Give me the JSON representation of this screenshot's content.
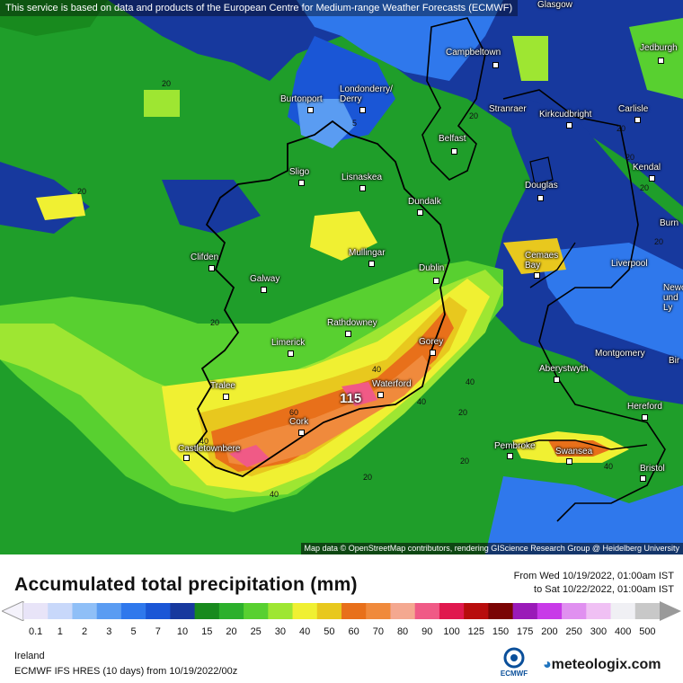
{
  "map": {
    "attribution_top": "This service is based on data and products of the European Centre for Medium-range Weather Forecasts (ECMWF)",
    "attribution_bottom": "Map data © OpenStreetMap contributors, rendering GIScience Research Group @ Heidelberg University",
    "max_value": "115",
    "cities": [
      {
        "name": "Glasgow"
      },
      {
        "name": "Campbeltown"
      },
      {
        "name": "Jedburgh"
      },
      {
        "name": "Londonderry/\nDerry"
      },
      {
        "name": "Burtonport"
      },
      {
        "name": "Stranraer"
      },
      {
        "name": "Kirkcudbright"
      },
      {
        "name": "Carlisle"
      },
      {
        "name": "Belfast"
      },
      {
        "name": "Sligo"
      },
      {
        "name": "Lisnaskea"
      },
      {
        "name": "Kendal"
      },
      {
        "name": "Douglas"
      },
      {
        "name": "Dundalk"
      },
      {
        "name": "Mullingar"
      },
      {
        "name": "Clifden"
      },
      {
        "name": "Cemaes\nBay"
      },
      {
        "name": "Dublin"
      },
      {
        "name": "Liverpool"
      },
      {
        "name": "Galway"
      },
      {
        "name": "Newca\nund\nLy"
      },
      {
        "name": "Rathdowney"
      },
      {
        "name": "Limerick"
      },
      {
        "name": "Gorey"
      },
      {
        "name": "Montgomery"
      },
      {
        "name": "Aberystwyth"
      },
      {
        "name": "Tralee"
      },
      {
        "name": "Waterford"
      },
      {
        "name": "Hereford"
      },
      {
        "name": "Cork"
      },
      {
        "name": "Castletownbere"
      },
      {
        "name": "Pembroke"
      },
      {
        "name": "Swansea"
      },
      {
        "name": "Bristol"
      },
      {
        "name": "Burn"
      },
      {
        "name": "Bir"
      }
    ],
    "contour_labels": [
      "20",
      "20",
      "20",
      "20",
      "5",
      "20",
      "20",
      "20",
      "20",
      "40",
      "40",
      "60",
      "40",
      "40",
      "20",
      "40",
      "20",
      "40",
      "20"
    ]
  },
  "legend": {
    "title": "Accumulated total precipitation (mm)",
    "from": "From Wed 10/19/2022, 01:00am IST",
    "to": "to Sat 10/22/2022, 01:00am IST",
    "ticks": [
      "0.1",
      "1",
      "2",
      "3",
      "5",
      "7",
      "10",
      "15",
      "20",
      "25",
      "30",
      "40",
      "50",
      "60",
      "70",
      "80",
      "90",
      "100",
      "125",
      "150",
      "175",
      "200",
      "250",
      "300",
      "400",
      "500"
    ],
    "colors": [
      "#e8e4f8",
      "#c8d8fa",
      "#8fbff7",
      "#5a9cf2",
      "#2f78ec",
      "#1a56d6",
      "#17399e",
      "#188a1e",
      "#2cb02c",
      "#58d030",
      "#9ee632",
      "#f0f032",
      "#e8c81e",
      "#e8701a",
      "#f08a3c",
      "#f4a890",
      "#f05a86",
      "#e0184e",
      "#b80c0c",
      "#7a0404",
      "#9a1ab8",
      "#c83ae8",
      "#e090f0",
      "#f0c0f4",
      "#f0f0f4",
      "#c8c8c8"
    ]
  },
  "footer": {
    "region": "Ireland",
    "model": "ECMWF IFS HRES (10 days) from  10/19/2022/00z",
    "ecmwf_logo_text": "ECMWF",
    "brand_prefix": "",
    "brand_name": "meteologix.com"
  }
}
